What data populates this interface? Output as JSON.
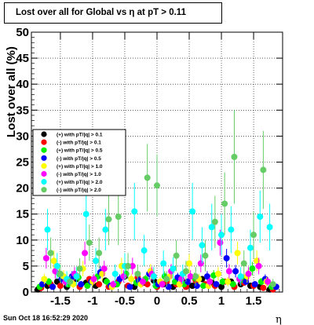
{
  "chart_data": {
    "type": "scatter",
    "title": "Lost over all for Global vs  η at pT > 0.11",
    "xlabel": "η",
    "ylabel": "Lost over all (%)",
    "xlim": [
      -1.95,
      1.95
    ],
    "ylim": [
      0,
      50
    ],
    "x_ticks": [
      -1.5,
      -1,
      -0.5,
      0,
      0.5,
      1,
      1.5
    ],
    "x_tick_labels": [
      "-1.5",
      "-1",
      "-0.5",
      "0",
      "0.5",
      "1",
      "1.5"
    ],
    "y_ticks": [
      0,
      5,
      10,
      15,
      20,
      25,
      30,
      35,
      40,
      45,
      50
    ],
    "y_tick_labels": [
      "0",
      "5",
      "10",
      "15",
      "20",
      "25",
      "30",
      "35",
      "40",
      "45",
      "50"
    ],
    "grid": true,
    "legend_position": "left-middle",
    "series": [
      {
        "name": "(+) with pT/|q| > 0.1",
        "color": "#000000",
        "x": [
          -1.85,
          -1.7,
          -1.55,
          -1.4,
          -1.25,
          -1.1,
          -0.95,
          -0.8,
          -0.65,
          -0.5,
          -0.35,
          -0.2,
          -0.05,
          0.1,
          0.25,
          0.4,
          0.55,
          0.7,
          0.85,
          1.0,
          1.15,
          1.3,
          1.45,
          1.6,
          1.75
        ],
        "y": [
          0.5,
          1.2,
          2.0,
          1.0,
          2.5,
          1.8,
          1.2,
          2.2,
          1.5,
          3.0,
          1.0,
          1.8,
          2.2,
          1.5,
          1.0,
          2.0,
          1.2,
          2.5,
          1.8,
          1.0,
          2.0,
          1.5,
          1.2,
          1.0,
          0.5
        ],
        "err": [
          0.2,
          0.3,
          0.4,
          0.3,
          0.5,
          0.4,
          0.3,
          0.5,
          0.3,
          0.6,
          0.3,
          0.4,
          0.5,
          0.4,
          0.3,
          0.4,
          0.3,
          0.5,
          0.4,
          0.3,
          0.4,
          0.4,
          0.3,
          0.3,
          0.2
        ]
      },
      {
        "name": "(-) with pT/|q| > 0.1",
        "color": "#ff0000",
        "x": [
          -1.8,
          -1.65,
          -1.5,
          -1.35,
          -1.2,
          -1.05,
          -0.9,
          -0.75,
          -0.6,
          -0.45,
          -0.3,
          -0.15,
          0.0,
          0.15,
          0.3,
          0.45,
          0.6,
          0.75,
          0.9,
          1.05,
          1.2,
          1.35,
          1.5,
          1.65,
          1.8
        ],
        "y": [
          0.8,
          1.5,
          1.2,
          2.0,
          1.0,
          2.5,
          1.5,
          1.0,
          2.0,
          1.2,
          2.8,
          1.5,
          1.0,
          2.0,
          1.5,
          1.0,
          2.2,
          1.5,
          1.2,
          2.0,
          1.0,
          1.8,
          1.2,
          0.8,
          0.5
        ],
        "err": [
          0.3,
          0.4,
          0.3,
          0.5,
          0.3,
          0.5,
          0.4,
          0.3,
          0.5,
          0.3,
          0.6,
          0.4,
          0.3,
          0.5,
          0.4,
          0.3,
          0.5,
          0.4,
          0.3,
          0.5,
          0.3,
          0.4,
          0.3,
          0.3,
          0.2
        ]
      },
      {
        "name": "(+) with pT/|q| > 0.5",
        "color": "#00ee00",
        "x": [
          -1.82,
          -1.68,
          -1.52,
          -1.38,
          -1.22,
          -1.08,
          -0.92,
          -0.78,
          -0.62,
          -0.48,
          -0.32,
          -0.18,
          -0.02,
          0.12,
          0.28,
          0.42,
          0.58,
          0.72,
          0.88,
          1.02,
          1.18,
          1.32,
          1.48,
          1.62,
          1.78
        ],
        "y": [
          1.0,
          2.0,
          3.5,
          1.5,
          2.8,
          1.2,
          3.0,
          2.0,
          1.5,
          3.5,
          1.8,
          2.5,
          1.2,
          3.0,
          2.0,
          1.5,
          2.8,
          1.2,
          3.2,
          2.0,
          1.5,
          2.5,
          4.5,
          2.0,
          1.0
        ],
        "err": [
          0.5,
          0.7,
          1.0,
          0.6,
          0.9,
          0.5,
          1.0,
          0.7,
          0.6,
          1.1,
          0.7,
          0.8,
          0.5,
          1.0,
          0.7,
          0.6,
          0.9,
          0.5,
          1.0,
          0.7,
          0.6,
          0.8,
          1.3,
          0.7,
          0.5
        ]
      },
      {
        "name": "(-) with pT/|q| > 0.5",
        "color": "#0000ff",
        "x": [
          -1.78,
          -1.62,
          -1.48,
          -1.32,
          -1.18,
          -1.02,
          -0.88,
          -0.72,
          -0.58,
          -0.42,
          -0.28,
          -0.12,
          0.02,
          0.18,
          0.32,
          0.48,
          0.62,
          0.78,
          0.92,
          1.08,
          1.22,
          1.38,
          1.52,
          1.68,
          1.85
        ],
        "y": [
          1.5,
          1.0,
          2.5,
          3.0,
          1.5,
          2.0,
          3.8,
          1.2,
          2.5,
          1.0,
          2.2,
          3.5,
          1.5,
          1.0,
          2.8,
          2.0,
          1.2,
          3.0,
          1.5,
          6.5,
          4.0,
          2.0,
          1.5,
          2.5,
          1.0
        ],
        "err": [
          0.6,
          0.5,
          0.9,
          1.0,
          0.6,
          0.7,
          1.2,
          0.5,
          0.9,
          0.5,
          0.8,
          1.1,
          0.6,
          0.5,
          0.9,
          0.7,
          0.5,
          1.0,
          0.6,
          1.8,
          1.2,
          0.7,
          0.6,
          0.9,
          0.5
        ]
      },
      {
        "name": "(+) with pT/|q| > 1.0",
        "color": "#ffff00",
        "x": [
          -1.75,
          -1.6,
          -1.45,
          -1.3,
          -1.15,
          -1.0,
          -0.85,
          -0.7,
          -0.55,
          -0.4,
          -0.25,
          -0.1,
          0.05,
          0.2,
          0.35,
          0.5,
          0.65,
          0.8,
          0.95,
          1.1,
          1.25,
          1.4,
          1.55,
          1.7
        ],
        "y": [
          2.5,
          6.0,
          3.0,
          1.5,
          4.5,
          2.0,
          3.5,
          1.0,
          5.0,
          2.5,
          1.5,
          4.0,
          2.0,
          3.0,
          1.5,
          5.5,
          2.5,
          1.2,
          3.5,
          2.0,
          7.5,
          3.0,
          6.0,
          2.0
        ],
        "err": [
          1.0,
          2.0,
          1.2,
          0.7,
          1.5,
          0.9,
          1.3,
          0.5,
          1.6,
          1.0,
          0.7,
          1.4,
          0.9,
          1.2,
          0.7,
          1.8,
          1.0,
          0.6,
          1.3,
          0.9,
          2.2,
          1.2,
          2.0,
          0.9
        ]
      },
      {
        "name": "(-) with pT/|q| > 1.0",
        "color": "#ff00ff",
        "x": [
          -1.72,
          -1.58,
          -1.42,
          -1.28,
          -1.12,
          -0.98,
          -0.82,
          -0.68,
          -0.52,
          -0.38,
          -0.22,
          -0.08,
          0.08,
          0.22,
          0.38,
          0.52,
          0.68,
          0.82,
          0.98,
          1.12,
          1.28,
          1.42,
          1.58,
          1.72
        ],
        "y": [
          6.5,
          4.0,
          2.0,
          3.5,
          7.5,
          2.5,
          4.5,
          1.5,
          3.0,
          5.0,
          2.0,
          3.5,
          1.5,
          4.0,
          2.5,
          3.0,
          5.5,
          2.0,
          9.5,
          4.0,
          2.5,
          3.5,
          5.0,
          2.0
        ],
        "err": [
          2.0,
          1.4,
          0.9,
          1.3,
          2.2,
          1.0,
          1.5,
          0.7,
          1.2,
          1.6,
          0.9,
          1.3,
          0.7,
          1.4,
          1.0,
          1.2,
          1.7,
          0.9,
          2.5,
          1.4,
          1.0,
          1.3,
          1.6,
          0.9
        ]
      },
      {
        "name": "(+) with pT/|q| > 2.0",
        "color": "#00ffff",
        "x": [
          -1.7,
          -1.55,
          -1.4,
          -1.25,
          -1.1,
          -0.95,
          -0.8,
          -0.65,
          -0.5,
          -0.35,
          -0.2,
          -0.05,
          0.1,
          0.25,
          0.4,
          0.55,
          0.7,
          0.85,
          1.0,
          1.15,
          1.3,
          1.45,
          1.6,
          1.75
        ],
        "y": [
          12.0,
          5.0,
          2.5,
          3.0,
          15.0,
          6.0,
          12.0,
          3.5,
          5.0,
          15.5,
          8.0,
          3.0,
          5.5,
          4.5,
          3.5,
          15.5,
          9.0,
          12.5,
          11.0,
          12.0,
          3.0,
          8.5,
          14.5,
          12.5
        ],
        "err": [
          4.0,
          2.5,
          1.5,
          1.8,
          5.0,
          2.5,
          4.0,
          1.8,
          2.5,
          5.5,
          3.0,
          1.8,
          2.5,
          2.2,
          1.8,
          5.5,
          3.5,
          4.5,
          4.0,
          4.5,
          1.8,
          3.5,
          5.0,
          4.5
        ]
      },
      {
        "name": "(-) with pT/|q| > 2.0",
        "color": "#66cc66",
        "x": [
          -1.65,
          -1.5,
          -1.35,
          -1.2,
          -1.05,
          -0.9,
          -0.75,
          -0.6,
          -0.45,
          -0.3,
          -0.15,
          0.0,
          0.15,
          0.3,
          0.45,
          0.6,
          0.75,
          0.9,
          1.05,
          1.2,
          1.35,
          1.5,
          1.65,
          1.8
        ],
        "y": [
          7.5,
          3.5,
          2.0,
          4.5,
          9.5,
          7.5,
          14.0,
          14.5,
          5.0,
          3.5,
          22.0,
          20.5,
          2.5,
          7.0,
          4.0,
          3.0,
          7.0,
          13.5,
          17.0,
          26.0,
          5.5,
          11.0,
          23.5,
          1.5
        ],
        "err": [
          3.0,
          1.8,
          1.2,
          2.0,
          3.5,
          3.0,
          5.0,
          5.5,
          2.5,
          1.8,
          6.5,
          6.0,
          1.5,
          3.0,
          2.0,
          1.8,
          3.0,
          5.0,
          6.0,
          9.0,
          2.5,
          4.5,
          7.5,
          1.0
        ]
      }
    ]
  },
  "footer": {
    "timestamp": "Sun Oct 18 16:52:29 2020"
  }
}
